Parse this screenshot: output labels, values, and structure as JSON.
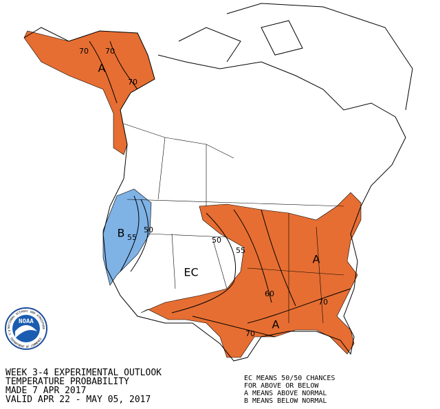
{
  "map": {
    "alaska": {
      "category": "A",
      "contours": [
        70,
        70,
        70
      ]
    },
    "west": {
      "category": "B",
      "contours": [
        55,
        50
      ]
    },
    "middle": {
      "category": "EC"
    },
    "east": {
      "category": "A",
      "contours": [
        50,
        55,
        60,
        70,
        70
      ],
      "category_2": "A"
    },
    "logo": {
      "name": "NOAA",
      "ring_top": "NATIONAL OCEANIC AND ATMOSPHERIC ADMINISTRATION",
      "ring_bottom": "U.S. DEPARTMENT OF COMMERCE"
    },
    "title_lines": [
      "WEEK 3-4 EXPERIMENTAL OUTLOOK",
      "TEMPERATURE PROBABILITY",
      "MADE  7 APR 2017",
      "VALID  APR 22 - MAY 05, 2017"
    ],
    "legend_lines": [
      "EC MEANS 50/50 CHANCES",
      "FOR ABOVE OR BELOW",
      "A MEANS ABOVE NORMAL",
      "B MEANS BELOW NORMAL"
    ]
  }
}
